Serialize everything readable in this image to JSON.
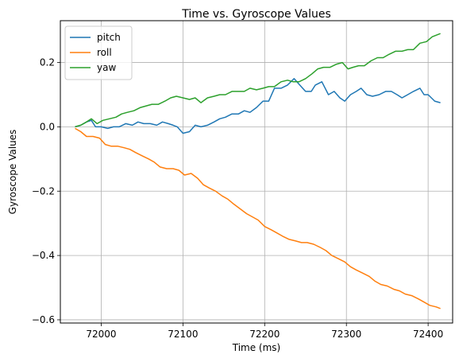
{
  "chart_data": {
    "type": "line",
    "title": "Time vs. Gyroscope Values",
    "xlabel": "Time (ms)",
    "ylabel": "Gyroscope Values",
    "xlim": [
      71950,
      72430
    ],
    "ylim": [
      -0.61,
      0.33
    ],
    "xticks": [
      {
        "value": 72000,
        "label": "72000"
      },
      {
        "value": 72100,
        "label": "72100"
      },
      {
        "value": 72200,
        "label": "72200"
      },
      {
        "value": 72300,
        "label": "72300"
      },
      {
        "value": 72400,
        "label": "72400"
      }
    ],
    "yticks": [
      {
        "value": -0.6,
        "label": "−0.6"
      },
      {
        "value": -0.4,
        "label": "−0.4"
      },
      {
        "value": -0.2,
        "label": "−0.2"
      },
      {
        "value": 0.0,
        "label": "0.0"
      },
      {
        "value": 0.2,
        "label": "0.2"
      }
    ],
    "grid": true,
    "legend_position": "top-left",
    "series": [
      {
        "name": "pitch",
        "color": "#1f77b4",
        "x": [
          71968,
          71975,
          71982,
          71988,
          71993,
          72000,
          72008,
          72015,
          72022,
          72030,
          72038,
          72045,
          72052,
          72060,
          72068,
          72075,
          72082,
          72088,
          72093,
          72100,
          72108,
          72115,
          72122,
          72130,
          72138,
          72145,
          72152,
          72160,
          72168,
          72175,
          72182,
          72190,
          72198,
          72205,
          72212,
          72220,
          72228,
          72236,
          72243,
          72250,
          72257,
          72262,
          72270,
          72278,
          72285,
          72292,
          72298,
          72305,
          72312,
          72318,
          72325,
          72332,
          72340,
          72348,
          72355,
          72362,
          72368,
          72375,
          72382,
          72390,
          72395,
          72400,
          72408,
          72415
        ],
        "y": [
          0.0,
          0.005,
          0.015,
          0.02,
          0.0,
          0.0,
          -0.005,
          0.0,
          0.0,
          0.01,
          0.005,
          0.015,
          0.01,
          0.01,
          0.005,
          0.015,
          0.01,
          0.005,
          0.0,
          -0.02,
          -0.015,
          0.005,
          0.0,
          0.005,
          0.015,
          0.025,
          0.03,
          0.04,
          0.04,
          0.05,
          0.045,
          0.06,
          0.08,
          0.08,
          0.12,
          0.12,
          0.13,
          0.15,
          0.13,
          0.11,
          0.11,
          0.13,
          0.14,
          0.1,
          0.11,
          0.09,
          0.08,
          0.1,
          0.11,
          0.12,
          0.1,
          0.095,
          0.1,
          0.11,
          0.11,
          0.1,
          0.09,
          0.1,
          0.11,
          0.12,
          0.1,
          0.1,
          0.08,
          0.075
        ]
      },
      {
        "name": "roll",
        "color": "#ff7f0e",
        "x": [
          71968,
          71975,
          71982,
          71990,
          71998,
          72005,
          72012,
          72020,
          72028,
          72035,
          72042,
          72050,
          72058,
          72065,
          72072,
          72080,
          72088,
          72095,
          72102,
          72110,
          72118,
          72125,
          72132,
          72140,
          72148,
          72155,
          72162,
          72170,
          72178,
          72185,
          72192,
          72200,
          72208,
          72215,
          72222,
          72230,
          72238,
          72245,
          72252,
          72260,
          72268,
          72275,
          72282,
          72290,
          72298,
          72305,
          72312,
          72320,
          72328,
          72335,
          72342,
          72350,
          72358,
          72365,
          72372,
          72380,
          72388,
          72395,
          72402,
          72410,
          72415
        ],
        "y": [
          -0.005,
          -0.015,
          -0.03,
          -0.03,
          -0.035,
          -0.055,
          -0.06,
          -0.06,
          -0.065,
          -0.07,
          -0.08,
          -0.09,
          -0.1,
          -0.11,
          -0.125,
          -0.13,
          -0.13,
          -0.135,
          -0.15,
          -0.145,
          -0.16,
          -0.18,
          -0.19,
          -0.2,
          -0.215,
          -0.225,
          -0.24,
          -0.255,
          -0.27,
          -0.28,
          -0.29,
          -0.31,
          -0.32,
          -0.33,
          -0.34,
          -0.35,
          -0.355,
          -0.36,
          -0.36,
          -0.365,
          -0.375,
          -0.385,
          -0.4,
          -0.41,
          -0.42,
          -0.435,
          -0.445,
          -0.455,
          -0.465,
          -0.48,
          -0.49,
          -0.495,
          -0.505,
          -0.51,
          -0.52,
          -0.525,
          -0.535,
          -0.545,
          -0.555,
          -0.56,
          -0.565
        ]
      },
      {
        "name": "yaw",
        "color": "#2ca02c",
        "x": [
          71968,
          71975,
          71982,
          71988,
          71995,
          72002,
          72010,
          72018,
          72025,
          72032,
          72040,
          72048,
          72055,
          72062,
          72070,
          72078,
          72085,
          72092,
          72100,
          72108,
          72115,
          72122,
          72130,
          72138,
          72145,
          72152,
          72160,
          72168,
          72175,
          72182,
          72190,
          72198,
          72205,
          72212,
          72220,
          72228,
          72235,
          72242,
          72250,
          72258,
          72265,
          72272,
          72280,
          72288,
          72295,
          72302,
          72308,
          72315,
          72322,
          72330,
          72338,
          72345,
          72352,
          72360,
          72368,
          72375,
          72382,
          72390,
          72398,
          72405,
          72415
        ],
        "y": [
          0.0,
          0.005,
          0.015,
          0.025,
          0.01,
          0.02,
          0.025,
          0.03,
          0.04,
          0.045,
          0.05,
          0.06,
          0.065,
          0.07,
          0.07,
          0.08,
          0.09,
          0.095,
          0.09,
          0.085,
          0.09,
          0.075,
          0.09,
          0.095,
          0.1,
          0.1,
          0.11,
          0.11,
          0.11,
          0.12,
          0.115,
          0.12,
          0.125,
          0.125,
          0.14,
          0.145,
          0.14,
          0.14,
          0.15,
          0.165,
          0.18,
          0.185,
          0.185,
          0.195,
          0.2,
          0.18,
          0.185,
          0.19,
          0.19,
          0.205,
          0.215,
          0.215,
          0.225,
          0.235,
          0.235,
          0.24,
          0.24,
          0.26,
          0.265,
          0.28,
          0.29
        ]
      }
    ]
  }
}
